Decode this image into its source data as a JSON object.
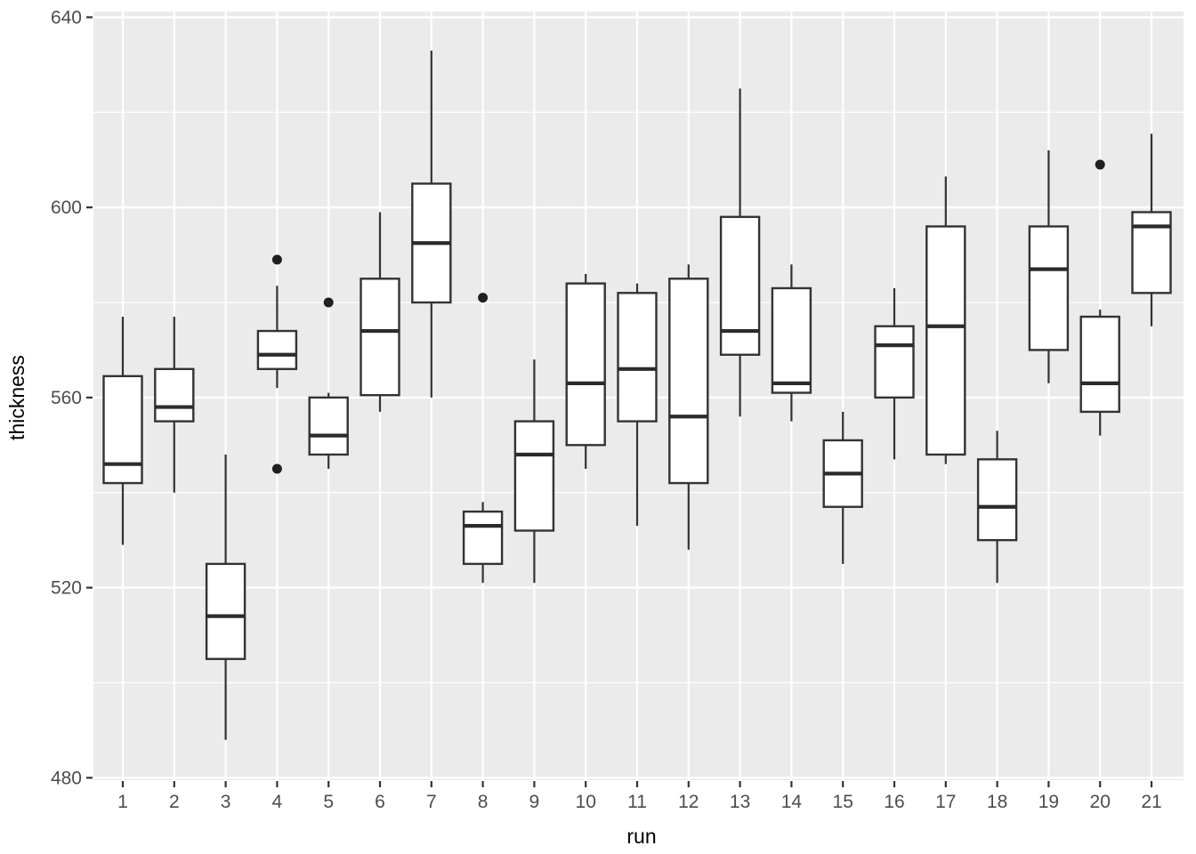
{
  "chart_data": {
    "type": "boxplot",
    "title": "",
    "xlabel": "run",
    "ylabel": "thickness",
    "x_categories": [
      "1",
      "2",
      "3",
      "4",
      "5",
      "6",
      "7",
      "8",
      "9",
      "10",
      "11",
      "12",
      "13",
      "14",
      "15",
      "16",
      "17",
      "18",
      "19",
      "20",
      "21"
    ],
    "y_ticks": [
      480,
      520,
      560,
      600,
      640
    ],
    "y_minor_ticks": [
      500,
      540,
      580,
      620
    ],
    "ylim": [
      479.5,
      641.2
    ],
    "grid": "on",
    "legend": "none",
    "boxes": [
      {
        "run": "1",
        "min": 529,
        "q1": 542,
        "median": 546,
        "q3": 564.5,
        "max": 577,
        "outliers": []
      },
      {
        "run": "2",
        "min": 540,
        "q1": 555,
        "median": 558,
        "q3": 566,
        "max": 577,
        "outliers": []
      },
      {
        "run": "3",
        "min": 488,
        "q1": 505,
        "median": 514,
        "q3": 525,
        "max": 548,
        "outliers": []
      },
      {
        "run": "4",
        "min": 562,
        "q1": 566,
        "median": 569,
        "q3": 574,
        "max": 583.5,
        "outliers": [
          545,
          589
        ]
      },
      {
        "run": "5",
        "min": 545,
        "q1": 548,
        "median": 552,
        "q3": 560,
        "max": 561,
        "outliers": [
          580
        ]
      },
      {
        "run": "6",
        "min": 557,
        "q1": 560.5,
        "median": 574,
        "q3": 585,
        "max": 599,
        "outliers": []
      },
      {
        "run": "7",
        "min": 560,
        "q1": 580,
        "median": 592.5,
        "q3": 605,
        "max": 633,
        "outliers": []
      },
      {
        "run": "8",
        "min": 521,
        "q1": 525,
        "median": 533,
        "q3": 536,
        "max": 538,
        "outliers": [
          581
        ]
      },
      {
        "run": "9",
        "min": 521,
        "q1": 532,
        "median": 548,
        "q3": 555,
        "max": 568,
        "outliers": []
      },
      {
        "run": "10",
        "min": 545,
        "q1": 550,
        "median": 563,
        "q3": 584,
        "max": 586,
        "outliers": []
      },
      {
        "run": "11",
        "min": 533,
        "q1": 555,
        "median": 566,
        "q3": 582,
        "max": 584,
        "outliers": []
      },
      {
        "run": "12",
        "min": 528,
        "q1": 542,
        "median": 556,
        "q3": 585,
        "max": 588,
        "outliers": []
      },
      {
        "run": "13",
        "min": 556,
        "q1": 569,
        "median": 574,
        "q3": 598,
        "max": 625,
        "outliers": []
      },
      {
        "run": "14",
        "min": 555,
        "q1": 561,
        "median": 563,
        "q3": 583,
        "max": 588,
        "outliers": []
      },
      {
        "run": "15",
        "min": 525,
        "q1": 537,
        "median": 544,
        "q3": 551,
        "max": 557,
        "outliers": []
      },
      {
        "run": "16",
        "min": 547,
        "q1": 560,
        "median": 571,
        "q3": 575,
        "max": 583,
        "outliers": []
      },
      {
        "run": "17",
        "min": 546,
        "q1": 548,
        "median": 575,
        "q3": 596,
        "max": 606.5,
        "outliers": []
      },
      {
        "run": "18",
        "min": 521,
        "q1": 530,
        "median": 537,
        "q3": 547,
        "max": 553,
        "outliers": []
      },
      {
        "run": "19",
        "min": 563,
        "q1": 570,
        "median": 587,
        "q3": 596,
        "max": 612,
        "outliers": []
      },
      {
        "run": "20",
        "min": 552,
        "q1": 557,
        "median": 563,
        "q3": 577,
        "max": 578.5,
        "outliers": [
          609
        ]
      },
      {
        "run": "21",
        "min": 575,
        "q1": 582,
        "median": 596,
        "q3": 599,
        "max": 615.5,
        "outliers": []
      }
    ],
    "colors": {
      "panel_background": "#EBEBEB",
      "gridline": "#FFFFFF",
      "box_stroke": "#333333",
      "box_fill": "#FFFFFF",
      "median_stroke": "#2B2B2B",
      "outlier_fill": "#1F1F1F",
      "tick_label": "#4D4D4D",
      "tick_mark": "#333333",
      "axis_title": "#000000",
      "figure_background": "#FFFFFF"
    }
  }
}
